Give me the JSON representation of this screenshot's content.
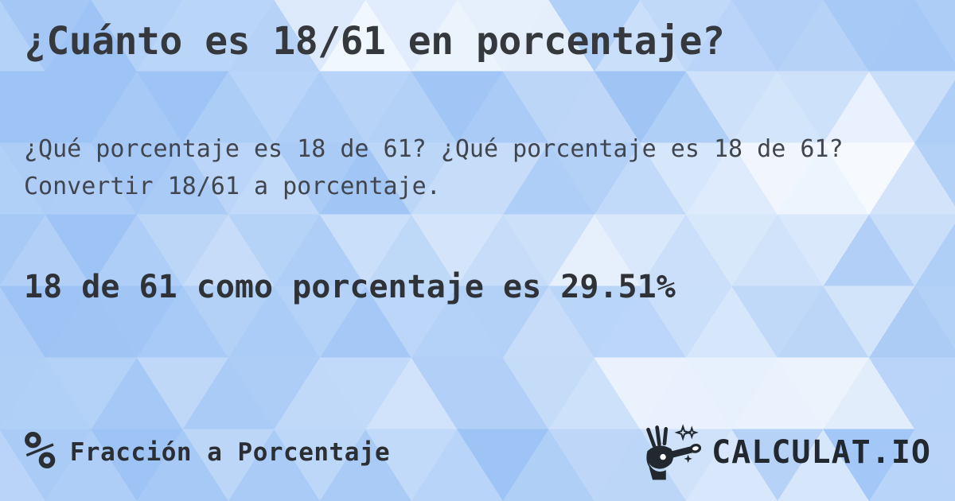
{
  "card": {
    "title": "¿Cuánto es 18/61 en porcentaje?",
    "description": "¿Qué porcentaje es 18 de 61? ¿Qué porcentaje es 18 de 61? Convertir 18/61 a porcentaje.",
    "answer": "18 de 61 como porcentaje es 29.51%"
  },
  "footer": {
    "percent_symbol": "%",
    "category_label": "Fracción a Porcentaje",
    "brand_name": "CALCULAT.IO"
  },
  "icons": {
    "percent_icon": "percent-icon",
    "brand_icon": "magic-wand-hand-icon"
  },
  "colors": {
    "title_text": "#35383d",
    "description_text": "#40454e",
    "answer_text": "#2f3338",
    "footer_text": "#2b2f33",
    "brand_text": "#22282f",
    "background_blue": "#9ec4f5",
    "background_white": "#ffffff"
  }
}
